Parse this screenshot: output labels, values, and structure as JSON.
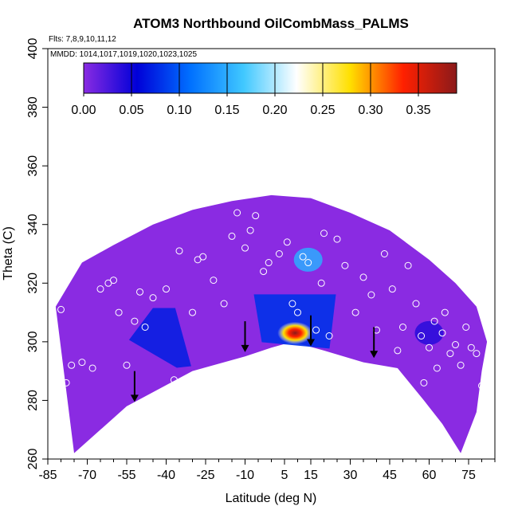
{
  "chart_data": {
    "type": "heatmap",
    "title": "ATOM3 Northbound OilCombMass_PALMS",
    "annotations": [
      "Flts: 7,8,9,10,11,12",
      "MMDD: 1014,1017,1019,1020,1023,1025"
    ],
    "xlabel": "Latitude (deg N)",
    "ylabel": "Theta (C)",
    "xlim": [
      -85,
      85
    ],
    "ylim": [
      260,
      400
    ],
    "x_ticks": [
      "-85",
      "-70",
      "-55",
      "-40",
      "-25",
      "-10",
      "5",
      "15",
      "30",
      "45",
      "60",
      "75"
    ],
    "y_ticks": [
      "260",
      "280",
      "300",
      "320",
      "340",
      "360",
      "380",
      "400"
    ],
    "colorbar": {
      "range": [
        0,
        0.39
      ],
      "tick_labels": [
        "0.00",
        "0.05",
        "0.10",
        "0.15",
        "0.20",
        "0.25",
        "0.30",
        "0.35"
      ],
      "colors": [
        "#8a2be2",
        "#0000d8",
        "#0070ff",
        "#40c8ff",
        "#ffffff",
        "#ffe000",
        "#ff2000",
        "#8b1a1a"
      ]
    },
    "background_value": 0.0,
    "outline_theta": [
      {
        "lat": -75,
        "theta": 262
      },
      {
        "lat": -55,
        "theta": 278
      },
      {
        "lat": -30,
        "theta": 290
      },
      {
        "lat": -10,
        "theta": 295
      },
      {
        "lat": 0,
        "theta": 298
      },
      {
        "lat": 8,
        "theta": 300
      },
      {
        "lat": 20,
        "theta": 297
      },
      {
        "lat": 35,
        "theta": 293
      },
      {
        "lat": 48,
        "theta": 291
      },
      {
        "lat": 58,
        "theta": 280
      },
      {
        "lat": 65,
        "theta": 272
      },
      {
        "lat": 72,
        "theta": 262
      },
      {
        "lat": 78,
        "theta": 276
      },
      {
        "lat": 80,
        "theta": 290
      }
    ],
    "features": [
      {
        "name": "southern-blue-band",
        "lat": -42,
        "theta": 302,
        "value": 0.07
      },
      {
        "name": "tropical-blue-plume",
        "lat": 10,
        "theta": 308,
        "value": 0.08
      },
      {
        "name": "upper-cyan-patch",
        "lat": 14,
        "theta": 328,
        "value": 0.15
      },
      {
        "name": "peak-hotspot",
        "lat": 9,
        "theta": 303,
        "value": 0.36
      },
      {
        "name": "northern-weak-patch",
        "lat": 60,
        "theta": 303,
        "value": 0.04
      }
    ],
    "arrows_lat": [
      -52,
      -10,
      15,
      39
    ],
    "observations": [
      {
        "lat": -80,
        "theta": 311
      },
      {
        "lat": -83,
        "theta": 295
      },
      {
        "lat": -78,
        "theta": 286
      },
      {
        "lat": -76,
        "theta": 292
      },
      {
        "lat": -72,
        "theta": 293
      },
      {
        "lat": -68,
        "theta": 291
      },
      {
        "lat": -65,
        "theta": 318
      },
      {
        "lat": -62,
        "theta": 320
      },
      {
        "lat": -60,
        "theta": 321
      },
      {
        "lat": -58,
        "theta": 310
      },
      {
        "lat": -55,
        "theta": 292
      },
      {
        "lat": -52,
        "theta": 307
      },
      {
        "lat": -50,
        "theta": 317
      },
      {
        "lat": -48,
        "theta": 305
      },
      {
        "lat": -45,
        "theta": 315
      },
      {
        "lat": -40,
        "theta": 318
      },
      {
        "lat": -37,
        "theta": 287
      },
      {
        "lat": -35,
        "theta": 331
      },
      {
        "lat": -30,
        "theta": 310
      },
      {
        "lat": -28,
        "theta": 328
      },
      {
        "lat": -26,
        "theta": 329
      },
      {
        "lat": -22,
        "theta": 321
      },
      {
        "lat": -18,
        "theta": 313
      },
      {
        "lat": -15,
        "theta": 336
      },
      {
        "lat": -13,
        "theta": 344
      },
      {
        "lat": -10,
        "theta": 332
      },
      {
        "lat": -8,
        "theta": 338
      },
      {
        "lat": -6,
        "theta": 343
      },
      {
        "lat": -3,
        "theta": 324
      },
      {
        "lat": -1,
        "theta": 327
      },
      {
        "lat": 3,
        "theta": 330
      },
      {
        "lat": 6,
        "theta": 334
      },
      {
        "lat": 8,
        "theta": 313
      },
      {
        "lat": 10,
        "theta": 310
      },
      {
        "lat": 12,
        "theta": 329
      },
      {
        "lat": 14,
        "theta": 327
      },
      {
        "lat": 17,
        "theta": 304
      },
      {
        "lat": 19,
        "theta": 320
      },
      {
        "lat": 20,
        "theta": 337
      },
      {
        "lat": 22,
        "theta": 302
      },
      {
        "lat": 25,
        "theta": 335
      },
      {
        "lat": 28,
        "theta": 326
      },
      {
        "lat": 32,
        "theta": 310
      },
      {
        "lat": 35,
        "theta": 322
      },
      {
        "lat": 38,
        "theta": 316
      },
      {
        "lat": 40,
        "theta": 304
      },
      {
        "lat": 43,
        "theta": 330
      },
      {
        "lat": 46,
        "theta": 318
      },
      {
        "lat": 48,
        "theta": 297
      },
      {
        "lat": 50,
        "theta": 305
      },
      {
        "lat": 52,
        "theta": 326
      },
      {
        "lat": 55,
        "theta": 313
      },
      {
        "lat": 57,
        "theta": 302
      },
      {
        "lat": 58,
        "theta": 286
      },
      {
        "lat": 60,
        "theta": 298
      },
      {
        "lat": 62,
        "theta": 307
      },
      {
        "lat": 63,
        "theta": 291
      },
      {
        "lat": 65,
        "theta": 303
      },
      {
        "lat": 66,
        "theta": 310
      },
      {
        "lat": 68,
        "theta": 296
      },
      {
        "lat": 70,
        "theta": 299
      },
      {
        "lat": 72,
        "theta": 292
      },
      {
        "lat": 74,
        "theta": 305
      },
      {
        "lat": 76,
        "theta": 298
      },
      {
        "lat": 78,
        "theta": 296
      },
      {
        "lat": 80,
        "theta": 285
      }
    ]
  }
}
